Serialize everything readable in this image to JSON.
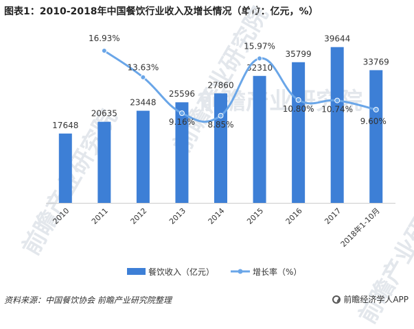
{
  "title": "图表1：2010-2018年中国餐饮行业收入及增长情况（单位：亿元，%）",
  "source": "资料来源：中国餐饮协会 前瞻产业研究院整理",
  "brand": "前瞻经济学人APP",
  "watermark": "前瞻产业研究院",
  "colors": {
    "bar": "#3d7fd6",
    "line": "#6aa6e8",
    "axis": "#cccccc"
  },
  "chart_data": {
    "type": "bar",
    "categories": [
      "2010",
      "2011",
      "2012",
      "2013",
      "2014",
      "2015",
      "2016",
      "2017",
      "2018年1-10月"
    ],
    "series": [
      {
        "name": "餐饮收入（亿元）",
        "type": "bar",
        "values": [
          17648,
          20635,
          23448,
          25596,
          27860,
          32310,
          35799,
          39644,
          33769
        ]
      },
      {
        "name": "增长率（%）",
        "type": "line",
        "values": [
          null,
          16.93,
          13.63,
          9.16,
          8.85,
          15.97,
          10.8,
          10.74,
          9.6
        ],
        "labels": [
          "",
          "16.93%",
          "13.63%",
          "9.16%",
          "8.85%",
          "15.97%",
          "10.80%",
          "10.74%",
          "9.60%"
        ]
      }
    ],
    "bar_ylim": [
      0,
      45000
    ],
    "line_ylim": [
      -2,
      20
    ],
    "legend_position": "bottom-center"
  }
}
